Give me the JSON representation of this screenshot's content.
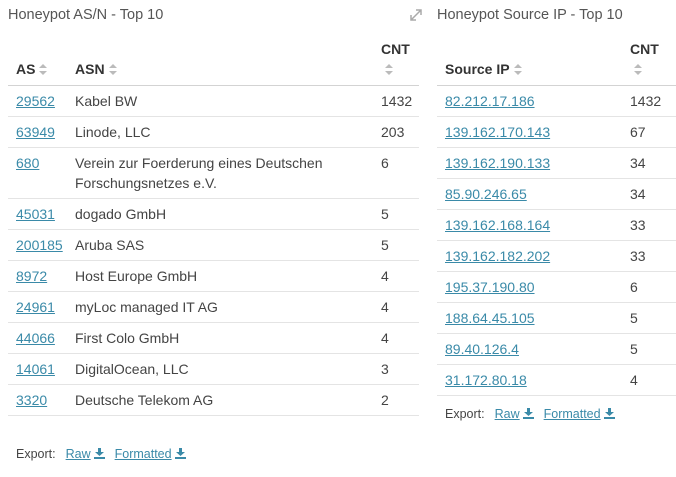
{
  "left_panel": {
    "title": "Honeypot AS/N - Top 10",
    "table": {
      "headers": [
        "AS",
        "ASN",
        "CNT"
      ],
      "rows": [
        [
          "29562",
          "Kabel BW",
          1432
        ],
        [
          "63949",
          "Linode, LLC",
          203
        ],
        [
          "680",
          "Verein zur Foerderung eines Deutschen Forschungsnetzes e.V.",
          6
        ],
        [
          "45031",
          "dogado GmbH",
          5
        ],
        [
          "200185",
          "Aruba SAS",
          5
        ],
        [
          "8972",
          "Host Europe GmbH",
          4
        ],
        [
          "24961",
          "myLoc managed IT AG",
          4
        ],
        [
          "44066",
          "First Colo GmbH",
          4
        ],
        [
          "14061",
          "DigitalOcean, LLC",
          3
        ],
        [
          "3320",
          "Deutsche Telekom AG",
          2
        ]
      ]
    },
    "export": {
      "label": "Export:",
      "raw": "Raw",
      "formatted": "Formatted"
    }
  },
  "right_panel": {
    "title": "Honeypot Source IP - Top 10",
    "table": {
      "headers": [
        "Source IP",
        "CNT"
      ],
      "rows": [
        [
          "82.212.17.186",
          1432
        ],
        [
          "139.162.170.143",
          67
        ],
        [
          "139.162.190.133",
          34
        ],
        [
          "85.90.246.65",
          34
        ],
        [
          "139.162.168.164",
          33
        ],
        [
          "139.162.182.202",
          33
        ],
        [
          "195.37.190.80",
          6
        ],
        [
          "188.64.45.105",
          5
        ],
        [
          "89.40.126.4",
          5
        ],
        [
          "31.172.80.18",
          4
        ]
      ]
    },
    "export": {
      "label": "Export:",
      "raw": "Raw",
      "formatted": "Formatted"
    }
  }
}
